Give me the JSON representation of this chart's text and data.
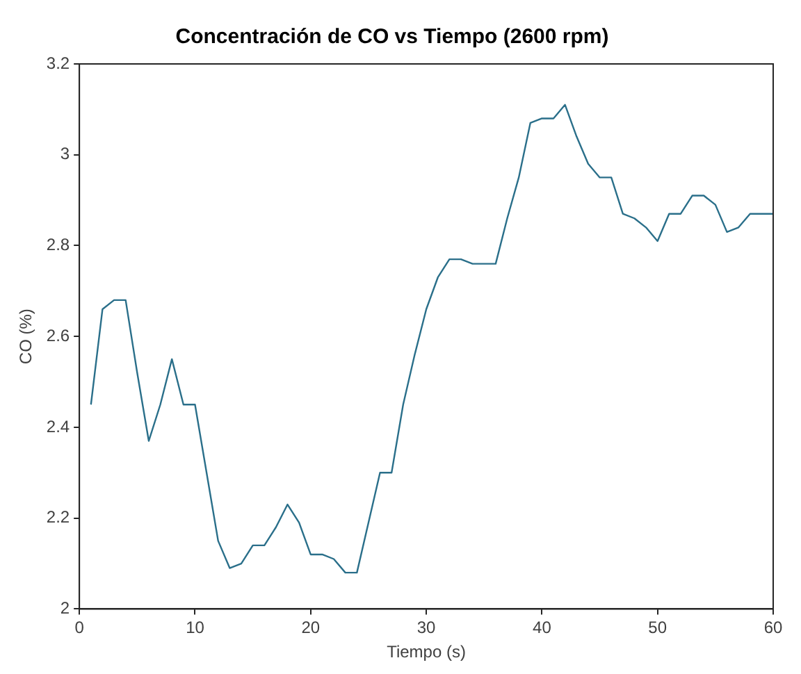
{
  "chart_data": {
    "type": "line",
    "title": "Concentración de CO vs Tiempo (2600 rpm)",
    "xlabel": "Tiempo (s)",
    "ylabel": "CO (%)",
    "x": [
      1,
      2,
      3,
      4,
      5,
      6,
      7,
      8,
      9,
      10,
      11,
      12,
      13,
      14,
      15,
      16,
      17,
      18,
      19,
      20,
      21,
      22,
      23,
      24,
      25,
      26,
      27,
      28,
      29,
      30,
      31,
      32,
      33,
      34,
      35,
      36,
      37,
      38,
      39,
      40,
      41,
      42,
      43,
      44,
      45,
      46,
      47,
      48,
      49,
      50,
      51,
      52,
      53,
      54,
      55,
      56,
      57,
      58,
      59,
      60
    ],
    "series": [
      {
        "color": "#2a6f8a",
        "values": [
          2.45,
          2.66,
          2.68,
          2.68,
          2.52,
          2.37,
          2.45,
          2.55,
          2.45,
          2.45,
          2.3,
          2.15,
          2.09,
          2.1,
          2.14,
          2.14,
          2.18,
          2.23,
          2.19,
          2.12,
          2.12,
          2.11,
          2.08,
          2.08,
          2.19,
          2.3,
          2.3,
          2.45,
          2.56,
          2.66,
          2.73,
          2.77,
          2.77,
          2.76,
          2.76,
          2.76,
          2.86,
          2.95,
          3.07,
          3.08,
          3.08,
          3.11,
          3.04,
          2.98,
          2.95,
          2.95,
          2.87,
          2.86,
          2.84,
          2.81,
          2.87,
          2.87,
          2.91,
          2.91,
          2.89,
          2.83,
          2.84,
          2.87,
          2.87,
          2.87
        ]
      }
    ],
    "xlim": [
      0,
      60
    ],
    "xticks": [
      0,
      10,
      20,
      30,
      40,
      50,
      60
    ],
    "ylim": [
      2,
      3.2
    ],
    "yticks": [
      2,
      2.2,
      2.4,
      2.6,
      2.8,
      3,
      3.2
    ],
    "grid": false,
    "legend": false,
    "marker": "none",
    "line_style": "solid"
  }
}
